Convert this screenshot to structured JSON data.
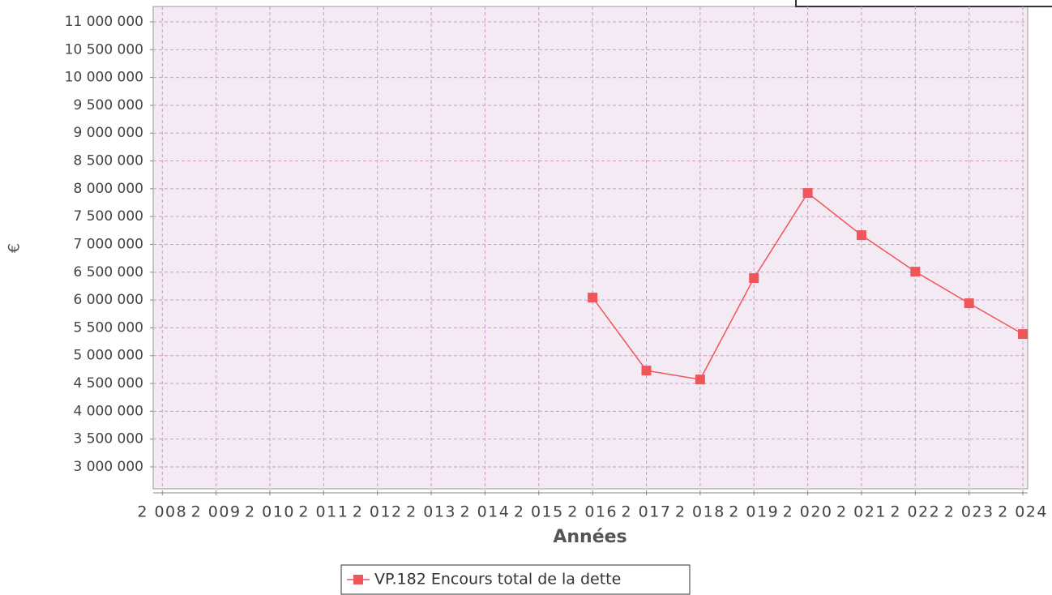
{
  "chart_data": {
    "type": "line",
    "x_label": "Années",
    "y_label": "€",
    "x": [
      2016,
      2017,
      2018,
      2019,
      2020,
      2021,
      2022,
      2023,
      2024
    ],
    "series": [
      {
        "name": "VP.182 Encours total de la dette",
        "color": "#f0555a",
        "values": [
          6044000,
          4732000,
          4571000,
          6394000,
          7924000,
          7166000,
          6510000,
          5942000,
          5388000
        ]
      }
    ],
    "xlim": [
      2007.83,
      2024.09
    ],
    "xticks": [
      {
        "value": 2008,
        "label": "2 008"
      },
      {
        "value": 2009,
        "label": "2 009"
      },
      {
        "value": 2010,
        "label": "2 010"
      },
      {
        "value": 2011,
        "label": "2 011"
      },
      {
        "value": 2012,
        "label": "2 012"
      },
      {
        "value": 2013,
        "label": "2 013"
      },
      {
        "value": 2014,
        "label": "2 014"
      },
      {
        "value": 2015,
        "label": "2 015"
      },
      {
        "value": 2016,
        "label": "2 016"
      },
      {
        "value": 2017,
        "label": "2 017"
      },
      {
        "value": 2018,
        "label": "2 018"
      },
      {
        "value": 2019,
        "label": "2 019"
      },
      {
        "value": 2020,
        "label": "2 020"
      },
      {
        "value": 2021,
        "label": "2 021"
      },
      {
        "value": 2022,
        "label": "2 022"
      },
      {
        "value": 2023,
        "label": "2 023"
      },
      {
        "value": 2024,
        "label": "2 024"
      }
    ],
    "ylim": [
      2606000,
      11277000
    ],
    "yticks": [
      {
        "value": 3000000,
        "label": "3 000 000"
      },
      {
        "value": 3500000,
        "label": "3 500 000"
      },
      {
        "value": 4000000,
        "label": "4 000 000"
      },
      {
        "value": 4500000,
        "label": "4 500 000"
      },
      {
        "value": 5000000,
        "label": "5 000 000"
      },
      {
        "value": 5500000,
        "label": "5 500 000"
      },
      {
        "value": 6000000,
        "label": "6 000 000"
      },
      {
        "value": 6500000,
        "label": "6 500 000"
      },
      {
        "value": 7000000,
        "label": "7 000 000"
      },
      {
        "value": 7500000,
        "label": "7 500 000"
      },
      {
        "value": 8000000,
        "label": "8 000 000"
      },
      {
        "value": 8500000,
        "label": "8 500 000"
      },
      {
        "value": 9000000,
        "label": "9 000 000"
      },
      {
        "value": 9500000,
        "label": "9 500 000"
      },
      {
        "value": 10000000,
        "label": "10 000 000"
      },
      {
        "value": 10500000,
        "label": "10 500 000"
      },
      {
        "value": 11000000,
        "label": "11 000 000"
      }
    ],
    "grid": true
  }
}
